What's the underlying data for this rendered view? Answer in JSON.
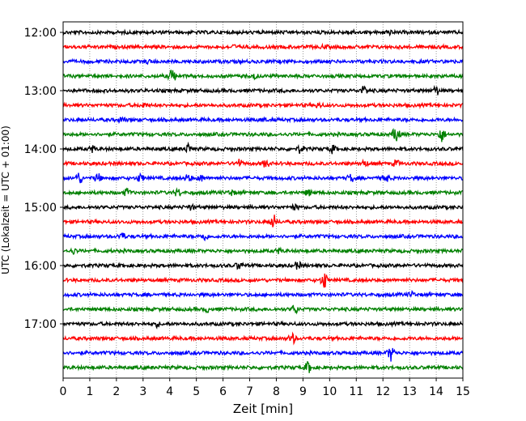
{
  "chart_data": {
    "type": "line",
    "title": "",
    "xlabel": "Zeit  [min]",
    "ylabel": "UTC (Lokalzeit = UTC + 01:00)",
    "xlim": [
      0,
      15
    ],
    "x_ticks": [
      "0",
      "1",
      "2",
      "3",
      "4",
      "5",
      "6",
      "7",
      "8",
      "9",
      "10",
      "11",
      "12",
      "13",
      "14",
      "15"
    ],
    "y_tick_labels": [
      "12:00",
      "13:00",
      "14:00",
      "15:00",
      "16:00",
      "17:00"
    ],
    "grid": "vertical dotted at each minute",
    "legend": "none",
    "colors": [
      "#000000",
      "#ff0000",
      "#0000ff",
      "#008000"
    ],
    "trace_minutes": 15,
    "traces": [
      {
        "start": "12:00",
        "color": "#000000",
        "events": [
          [
            10.8,
            0.3
          ],
          [
            12.2,
            0.3
          ]
        ]
      },
      {
        "start": "12:15",
        "color": "#ff0000",
        "events": [
          [
            6.4,
            0.2
          ],
          [
            9.8,
            0.2
          ]
        ]
      },
      {
        "start": "12:30",
        "color": "#0000ff",
        "events": [
          [
            3.2,
            0.2
          ]
        ]
      },
      {
        "start": "12:45",
        "color": "#008000",
        "events": [
          [
            4.1,
            1.0
          ],
          [
            7.2,
            0.3
          ]
        ]
      },
      {
        "start": "13:00",
        "color": "#000000",
        "events": [
          [
            11.3,
            0.6
          ],
          [
            14.0,
            0.6
          ]
        ]
      },
      {
        "start": "13:15",
        "color": "#ff0000",
        "events": [
          [
            3.0,
            0.3
          ],
          [
            9.6,
            0.3
          ]
        ]
      },
      {
        "start": "13:30",
        "color": "#0000ff",
        "events": [
          [
            2.2,
            0.3
          ],
          [
            7.5,
            0.2
          ]
        ]
      },
      {
        "start": "13:45",
        "color": "#008000",
        "events": [
          [
            12.5,
            1.2
          ],
          [
            14.2,
            1.0
          ]
        ]
      },
      {
        "start": "14:00",
        "color": "#000000",
        "events": [
          [
            1.1,
            0.4
          ],
          [
            4.7,
            0.6
          ],
          [
            8.9,
            0.5
          ],
          [
            10.1,
            0.5
          ]
        ]
      },
      {
        "start": "14:15",
        "color": "#ff0000",
        "events": [
          [
            6.6,
            0.5
          ],
          [
            7.6,
            0.5
          ],
          [
            11.3,
            0.4
          ],
          [
            12.5,
            0.4
          ]
        ]
      },
      {
        "start": "14:30",
        "color": "#0000ff",
        "events": [
          [
            0.6,
            0.8
          ],
          [
            1.3,
            0.6
          ],
          [
            2.9,
            0.5
          ],
          [
            4.7,
            0.5
          ],
          [
            5.2,
            0.4
          ],
          [
            10.8,
            0.5
          ],
          [
            12.1,
            0.5
          ]
        ]
      },
      {
        "start": "14:45",
        "color": "#008000",
        "events": [
          [
            2.4,
            0.5
          ],
          [
            4.3,
            0.5
          ],
          [
            6.3,
            0.4
          ],
          [
            9.2,
            0.4
          ]
        ]
      },
      {
        "start": "15:00",
        "color": "#000000",
        "events": [
          [
            4.8,
            0.3
          ],
          [
            8.7,
            0.3
          ]
        ]
      },
      {
        "start": "15:15",
        "color": "#ff0000",
        "events": [
          [
            7.9,
            0.9
          ]
        ]
      },
      {
        "start": "15:30",
        "color": "#0000ff",
        "events": [
          [
            2.2,
            0.5
          ],
          [
            5.3,
            0.5
          ]
        ]
      },
      {
        "start": "15:45",
        "color": "#008000",
        "events": [
          [
            0.4,
            0.3
          ],
          [
            8.1,
            0.3
          ]
        ]
      },
      {
        "start": "16:00",
        "color": "#000000",
        "events": [
          [
            6.6,
            0.5
          ],
          [
            8.8,
            0.5
          ]
        ]
      },
      {
        "start": "16:15",
        "color": "#ff0000",
        "events": [
          [
            9.8,
            1.2
          ]
        ]
      },
      {
        "start": "16:30",
        "color": "#0000ff",
        "events": [
          [
            13.1,
            0.3
          ]
        ]
      },
      {
        "start": "16:45",
        "color": "#008000",
        "events": [
          [
            8.7,
            0.6
          ],
          [
            5.4,
            0.3
          ]
        ]
      },
      {
        "start": "17:00",
        "color": "#000000",
        "events": [
          [
            3.5,
            0.3
          ]
        ]
      },
      {
        "start": "17:15",
        "color": "#ff0000",
        "events": [
          [
            8.6,
            0.7
          ]
        ]
      },
      {
        "start": "17:30",
        "color": "#0000ff",
        "events": [
          [
            12.3,
            1.0
          ]
        ]
      },
      {
        "start": "17:45",
        "color": "#008000",
        "events": [
          [
            9.2,
            0.8
          ]
        ]
      }
    ]
  }
}
